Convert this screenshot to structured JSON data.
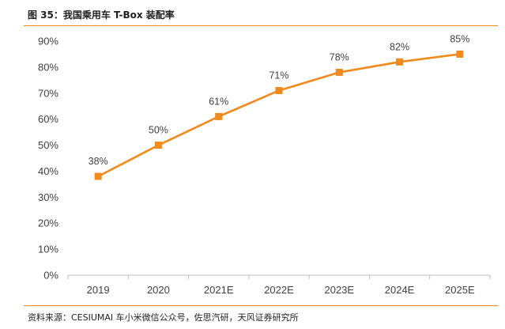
{
  "figure": {
    "title": "图 35：我国乘用车 T-Box 装配率",
    "source": "资料来源：CESIUMAI 车小米微信公众号，佐思汽研，天风证券研究所"
  },
  "colors": {
    "accent": "#f08a1c",
    "series": "#f08a1c",
    "axis": "#bfbfbf",
    "text": "#404040"
  },
  "chart_data": {
    "type": "line",
    "title": "",
    "xlabel": "",
    "ylabel": "",
    "categories": [
      "2019",
      "2020",
      "2021E",
      "2022E",
      "2023E",
      "2024E",
      "2025E"
    ],
    "series": [
      {
        "values": [
          38,
          50,
          61,
          71,
          78,
          82,
          85
        ],
        "labels": [
          "38%",
          "50%",
          "61%",
          "71%",
          "78%",
          "82%",
          "85%"
        ],
        "marker": "square"
      }
    ],
    "ylim": [
      0,
      90
    ],
    "yticks": [
      0,
      10,
      20,
      30,
      40,
      50,
      60,
      70,
      80,
      90
    ],
    "ytick_labels": [
      "0%",
      "10%",
      "20%",
      "30%",
      "40%",
      "50%",
      "60%",
      "70%",
      "80%",
      "90%"
    ],
    "grid": false,
    "legend": "none"
  }
}
